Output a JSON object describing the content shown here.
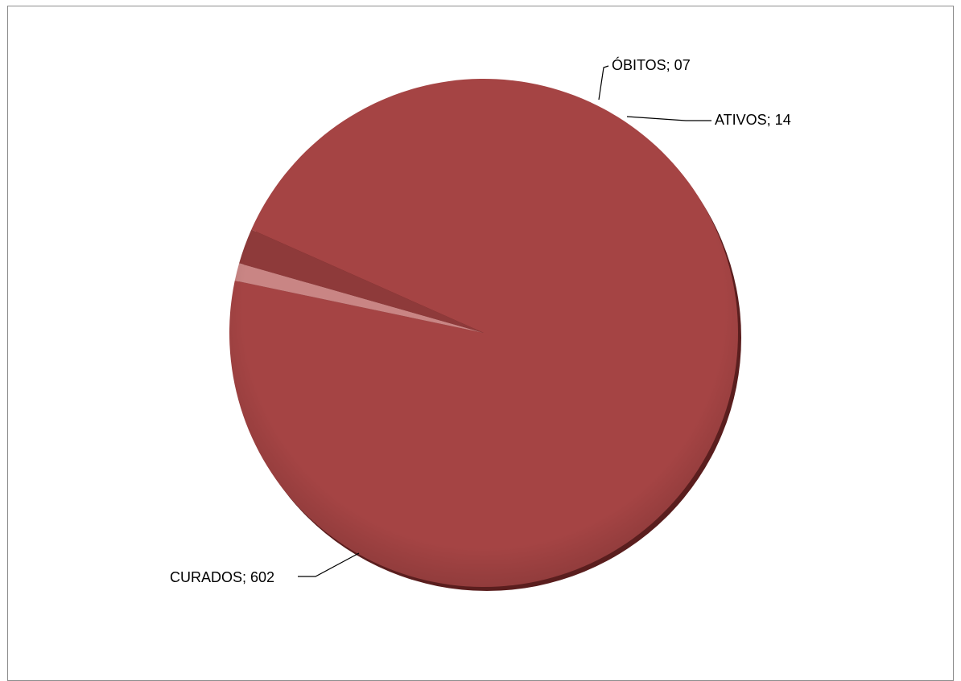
{
  "chart_data": {
    "type": "pie",
    "title": "",
    "slices": [
      {
        "label": "CURADOS",
        "value": 602,
        "display": "CURADOS; 602",
        "color": "#A54444"
      },
      {
        "label": "ÓBITOS",
        "value": 7,
        "display": "ÓBITOS; 07",
        "color": "#C98584"
      },
      {
        "label": "ATIVOS",
        "value": 14,
        "display": "ATIVOS; 14",
        "color": "#8E3A3A"
      }
    ],
    "data_label_format": "category; value",
    "legend": "none",
    "effect": "3d-shadow"
  }
}
